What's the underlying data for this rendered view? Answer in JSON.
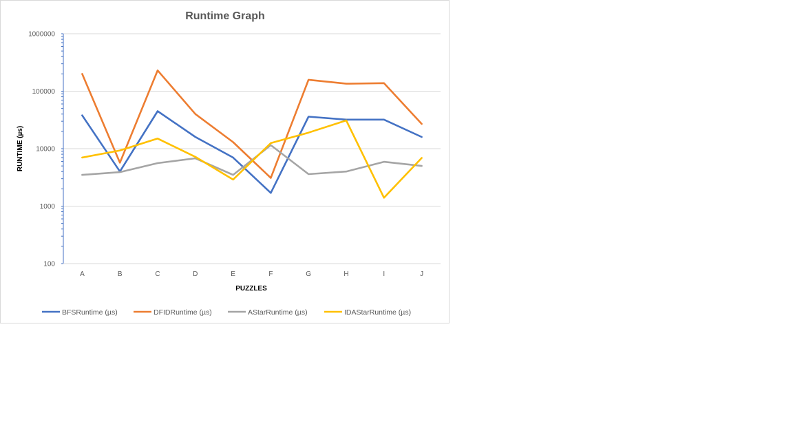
{
  "chart_data": {
    "type": "line",
    "title": "Runtime Graph",
    "xlabel": "PUZZLES",
    "ylabel": "RUNTIME (µs)",
    "y_scale": "log",
    "ylim": [
      100,
      1000000
    ],
    "y_ticks": [
      "100",
      "1000",
      "10000",
      "100000",
      "1000000"
    ],
    "grid": true,
    "legend_position": "bottom",
    "categories": [
      "A",
      "B",
      "C",
      "D",
      "E",
      "F",
      "G",
      "H",
      "I",
      "J"
    ],
    "series": [
      {
        "name": "BFSRuntime (µs)",
        "color": "#4472c4",
        "values": [
          38000,
          4000,
          45000,
          16000,
          7000,
          1700,
          36000,
          32000,
          32000,
          16000
        ]
      },
      {
        "name": "DFIDRuntime (µs)",
        "color": "#ed7d31",
        "values": [
          200000,
          5700,
          230000,
          40000,
          13000,
          3100,
          158000,
          135000,
          138000,
          27000
        ]
      },
      {
        "name": "AStarRuntime (µs)",
        "color": "#a5a5a5",
        "values": [
          3500,
          3900,
          5600,
          6800,
          3500,
          11500,
          3600,
          4000,
          5900,
          5000
        ]
      },
      {
        "name": "IDAStarRuntime (µs)",
        "color": "#ffc000",
        "values": [
          7000,
          9300,
          15000,
          7200,
          2900,
          12500,
          19000,
          31000,
          1400,
          6900
        ]
      }
    ]
  }
}
